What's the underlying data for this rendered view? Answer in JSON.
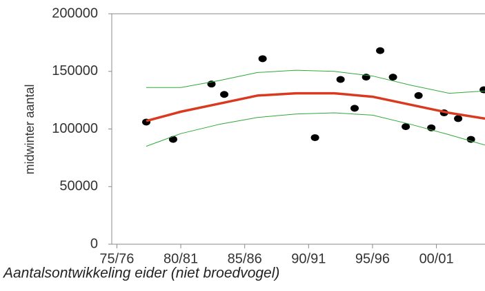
{
  "chart_data": {
    "type": "scatter",
    "y_label": "midwinter aantal",
    "caption": "Aantalsontwikkeling eider (niet broedvogel)",
    "xlim": [
      1974.6,
      2003.8
    ],
    "xticks": [
      {
        "value": 1975,
        "label": "75/76"
      },
      {
        "value": 1980,
        "label": "80/81"
      },
      {
        "value": 1985,
        "label": "85/86"
      },
      {
        "value": 1990,
        "label": "90/91"
      },
      {
        "value": 1995,
        "label": "95/96"
      },
      {
        "value": 2000,
        "label": "00/01"
      }
    ],
    "ylim": [
      0,
      200000
    ],
    "yticks": [
      0,
      50000,
      100000,
      150000,
      200000
    ],
    "series": [
      {
        "mode": "markers",
        "color": "#000000",
        "x": [
          1977.3,
          1979.4,
          1982.4,
          1983.4,
          1986.4,
          1990.5,
          1992.5,
          1993.6,
          1994.5,
          1995.6,
          1996.6,
          1997.6,
          1998.6,
          1999.6,
          2000.6,
          2001.7,
          2002.7,
          2003.7
        ],
        "values": [
          106000,
          91000,
          139000,
          130000,
          161000,
          92500,
          143000,
          118000,
          145000,
          168000,
          145000,
          102000,
          129000,
          101000,
          114000,
          109000,
          91000,
          134000
        ]
      },
      {
        "mode": "line",
        "color": "#2ea836",
        "width": 1,
        "x": [
          1977.3,
          1980,
          1983,
          1986,
          1989,
          1992,
          1995,
          1998,
          2001,
          2003.8
        ],
        "values": [
          136000,
          136000,
          142000,
          149000,
          151000,
          150000,
          146000,
          138000,
          131000,
          133000
        ]
      },
      {
        "mode": "line",
        "color": "#2ea836",
        "width": 1,
        "x": [
          1977.3,
          1980,
          1983,
          1986,
          1989,
          1992,
          1995,
          1998,
          2001,
          2003.8
        ],
        "values": [
          85000,
          96000,
          104000,
          110000,
          113000,
          114000,
          112000,
          104000,
          95000,
          86000
        ]
      },
      {
        "mode": "line",
        "color": "#d9391e",
        "width": 3.5,
        "x": [
          1977.3,
          1980,
          1983,
          1986,
          1989,
          1992,
          1995,
          1998,
          2001,
          2003.8
        ],
        "values": [
          107000,
          115000,
          122000,
          129000,
          131000,
          131000,
          128000,
          121000,
          114000,
          109000
        ]
      }
    ]
  }
}
